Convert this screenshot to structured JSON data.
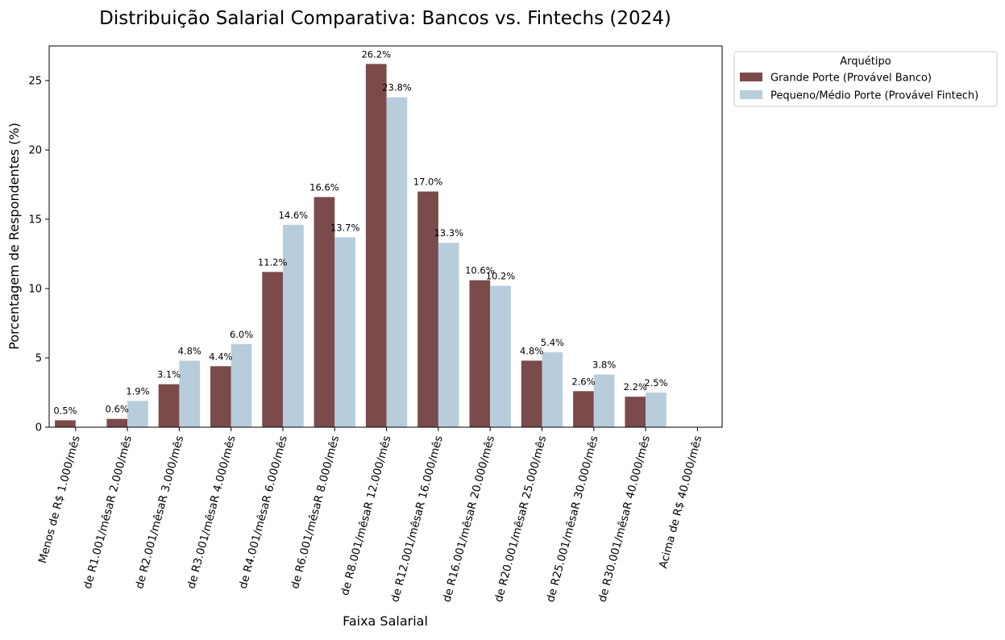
{
  "chart_data": {
    "type": "bar",
    "title": "Distribuição Salarial Comparativa: Bancos vs. Fintechs (2024)",
    "xlabel": "Faixa Salarial",
    "ylabel": "Porcentagem de Respondentes (%)",
    "ylim": [
      0,
      27.5
    ],
    "yticks": [
      0,
      5,
      10,
      15,
      20,
      25
    ],
    "categories": [
      "Menos de R$ 1.000/mês",
      "de R1.001/mêsaR 2.000/mês",
      "de R2.001/mêsaR 3.000/mês",
      "de R3.001/mêsaR 4.000/mês",
      "de R4.001/mêsaR 6.000/mês",
      "de R6.001/mêsaR 8.000/mês",
      "de R8.001/mêsaR 12.000/mês",
      "de R12.001/mêsaR 16.000/mês",
      "de R16.001/mêsaR 20.000/mês",
      "de R20.001/mêsaR 25.000/mês",
      "de R25.001/mêsaR 30.000/mês",
      "de R30.001/mêsaR 40.000/mês",
      "Acima de R$ 40.000/mês"
    ],
    "series": [
      {
        "name": "Grande Porte (Provável Banco)",
        "color": "#7b4a4a",
        "values": [
          0.5,
          0.6,
          3.1,
          4.4,
          11.2,
          16.6,
          26.2,
          17.0,
          10.6,
          4.8,
          2.6,
          2.2,
          null
        ],
        "labels": [
          "0.5%",
          "0.6%",
          "3.1%",
          "4.4%",
          "11.2%",
          "16.6%",
          "26.2%",
          "17.0%",
          "10.6%",
          "4.8%",
          "2.6%",
          "2.2%",
          null
        ]
      },
      {
        "name": "Pequeno/Médio Porte (Provável Fintech)",
        "color": "#b8cddb",
        "values": [
          null,
          1.9,
          4.8,
          6.0,
          14.6,
          13.7,
          23.8,
          13.3,
          10.2,
          5.4,
          3.8,
          2.5,
          null
        ],
        "labels": [
          null,
          "1.9%",
          "4.8%",
          "6.0%",
          "14.6%",
          "13.7%",
          "23.8%",
          "13.3%",
          "10.2%",
          "5.4%",
          "3.8%",
          "2.5%",
          null
        ]
      }
    ],
    "legend": {
      "title": "Arquétipo",
      "placement": "outside-top-right"
    },
    "grid": false
  }
}
